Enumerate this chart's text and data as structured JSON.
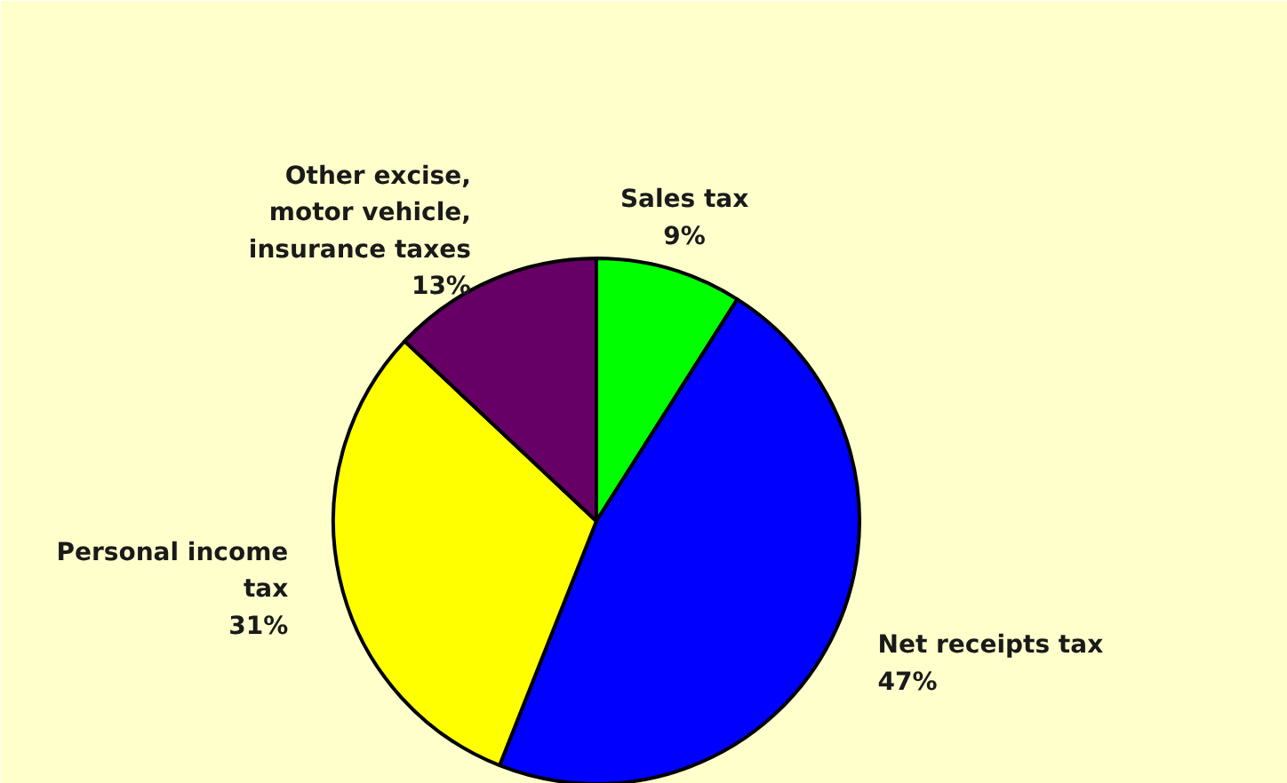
{
  "chart_data": {
    "type": "pie",
    "categories": [
      "Sales tax",
      "Net receipts tax",
      "Personal income tax",
      "Other excise, motor vehicle, insurance taxes"
    ],
    "values": [
      9,
      47,
      31,
      13
    ],
    "colors": [
      "#00ff00",
      "#0000ff",
      "#ffff00",
      "#660066"
    ],
    "value_labels": [
      "9%",
      "47%",
      "31%",
      "13%"
    ]
  }
}
